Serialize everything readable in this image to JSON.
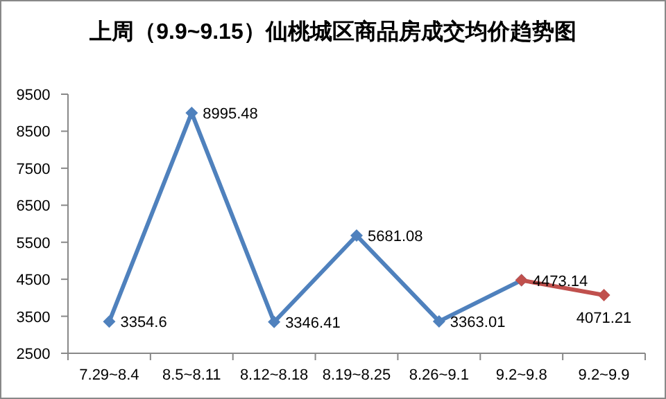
{
  "chart_data": {
    "type": "line",
    "title": "上周（9.9~9.15）仙桃城区商品房成交均价趋势图",
    "categories": [
      "7.29~8.4",
      "8.5~8.11",
      "8.12~8.18",
      "8.19~8.25",
      "8.26~9.1",
      "9.2~9.8",
      "9.2~9.9"
    ],
    "series": [
      {
        "color": "#4f81bd",
        "values": [
          3354.6,
          8995.48,
          3346.41,
          5681.08,
          3363.01,
          4473.14,
          null
        ],
        "value_labels": [
          "3354.6",
          "8995.48",
          "3346.41",
          "5681.08",
          "3363.01",
          "4473.14",
          null
        ]
      },
      {
        "color": "#c0504d",
        "values": [
          null,
          null,
          null,
          null,
          null,
          4473.14,
          4071.21
        ],
        "value_labels": [
          null,
          null,
          null,
          null,
          null,
          null,
          "4071.21"
        ]
      }
    ],
    "ylim": [
      2500,
      9500
    ],
    "yticks": [
      2500,
      3500,
      4500,
      5500,
      6500,
      7500,
      8500,
      9500
    ],
    "marker": "diamond",
    "line_style": "solid",
    "grid": false
  }
}
